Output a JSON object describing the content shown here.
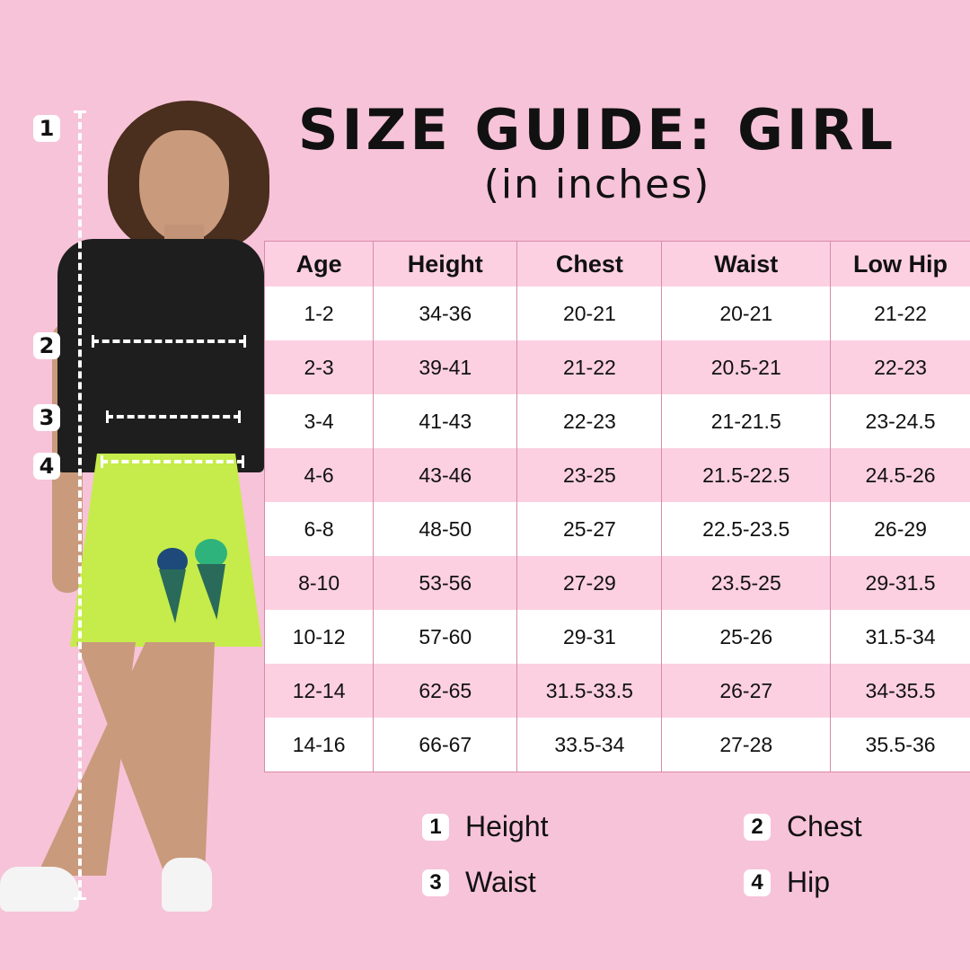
{
  "title": "SIZE GUIDE: GIRL",
  "subtitle": "(in inches)",
  "table": {
    "headers": [
      "Age",
      "Height",
      "Chest",
      "Waist",
      "Low Hip"
    ],
    "rows": [
      [
        "1-2",
        "34-36",
        "20-21",
        "20-21",
        "21-22"
      ],
      [
        "2-3",
        "39-41",
        "21-22",
        "20.5-21",
        "22-23"
      ],
      [
        "3-4",
        "41-43",
        "22-23",
        "21-21.5",
        "23-24.5"
      ],
      [
        "4-6",
        "43-46",
        "23-25",
        "21.5-22.5",
        "24.5-26"
      ],
      [
        "6-8",
        "48-50",
        "25-27",
        "22.5-23.5",
        "26-29"
      ],
      [
        "8-10",
        "53-56",
        "27-29",
        "23.5-25",
        "29-31.5"
      ],
      [
        "10-12",
        "57-60",
        "29-31",
        "25-26",
        "31.5-34"
      ],
      [
        "12-14",
        "62-65",
        "31.5-33.5",
        "26-27",
        "34-35.5"
      ],
      [
        "14-16",
        "66-67",
        "33.5-34",
        "27-28",
        "35.5-36"
      ]
    ]
  },
  "markers": [
    "1",
    "2",
    "3",
    "4"
  ],
  "legend": [
    {
      "num": "1",
      "label": "Height"
    },
    {
      "num": "2",
      "label": "Chest"
    },
    {
      "num": "3",
      "label": "Waist"
    },
    {
      "num": "4",
      "label": "Hip"
    }
  ],
  "colors": {
    "background": "#f7c3d8",
    "row_pink": "#fcd0e1",
    "row_white": "#ffffff",
    "shirt": "#1e1e1e",
    "skirt": "#c5ec4a"
  }
}
